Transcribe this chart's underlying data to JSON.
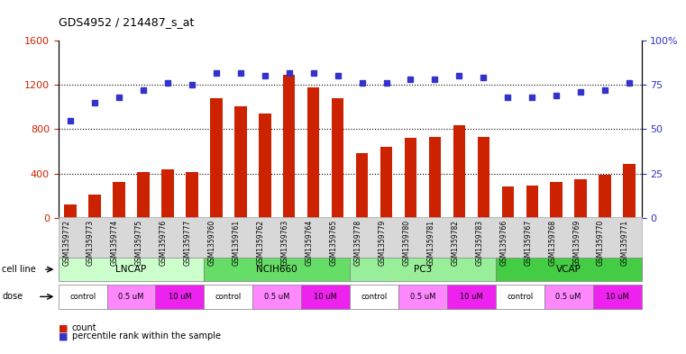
{
  "title": "GDS4952 / 214487_s_at",
  "samples": [
    "GSM1359772",
    "GSM1359773",
    "GSM1359774",
    "GSM1359775",
    "GSM1359776",
    "GSM1359777",
    "GSM1359760",
    "GSM1359761",
    "GSM1359762",
    "GSM1359763",
    "GSM1359764",
    "GSM1359765",
    "GSM1359778",
    "GSM1359779",
    "GSM1359780",
    "GSM1359781",
    "GSM1359782",
    "GSM1359783",
    "GSM1359766",
    "GSM1359767",
    "GSM1359768",
    "GSM1359769",
    "GSM1359770",
    "GSM1359771"
  ],
  "counts": [
    120,
    210,
    320,
    410,
    440,
    410,
    1080,
    1010,
    940,
    1290,
    1180,
    1080,
    580,
    640,
    720,
    730,
    840,
    730,
    280,
    290,
    320,
    350,
    390,
    490
  ],
  "percentiles": [
    55,
    65,
    68,
    72,
    76,
    75,
    82,
    82,
    80,
    82,
    82,
    80,
    76,
    76,
    78,
    78,
    80,
    79,
    68,
    68,
    69,
    71,
    72,
    76
  ],
  "bar_color": "#cc2200",
  "dot_color": "#3333cc",
  "ylim_left": [
    0,
    1600
  ],
  "ylim_right": [
    0,
    100
  ],
  "yticks_left": [
    0,
    400,
    800,
    1200,
    1600
  ],
  "yticks_right": [
    0,
    25,
    50,
    75,
    100
  ],
  "ytick_right_labels": [
    "0",
    "25",
    "50",
    "75",
    "100%"
  ],
  "grid_values": [
    400,
    800,
    1200
  ],
  "background_color": "#ffffff",
  "legend_count_color": "#cc2200",
  "legend_dot_color": "#3333cc",
  "cell_line_groups": [
    {
      "name": "LNCAP",
      "start": 0,
      "end": 5,
      "color": "#ccffcc"
    },
    {
      "name": "NCIH660",
      "start": 6,
      "end": 11,
      "color": "#66dd66"
    },
    {
      "name": "PC3",
      "start": 12,
      "end": 17,
      "color": "#99ee99"
    },
    {
      "name": "VCAP",
      "start": 18,
      "end": 23,
      "color": "#44cc44"
    }
  ],
  "dose_labels": [
    "control",
    "0.5 uM",
    "10 uM"
  ],
  "dose_colors": [
    "#ffffff",
    "#ff88ff",
    "#ee22ee"
  ]
}
